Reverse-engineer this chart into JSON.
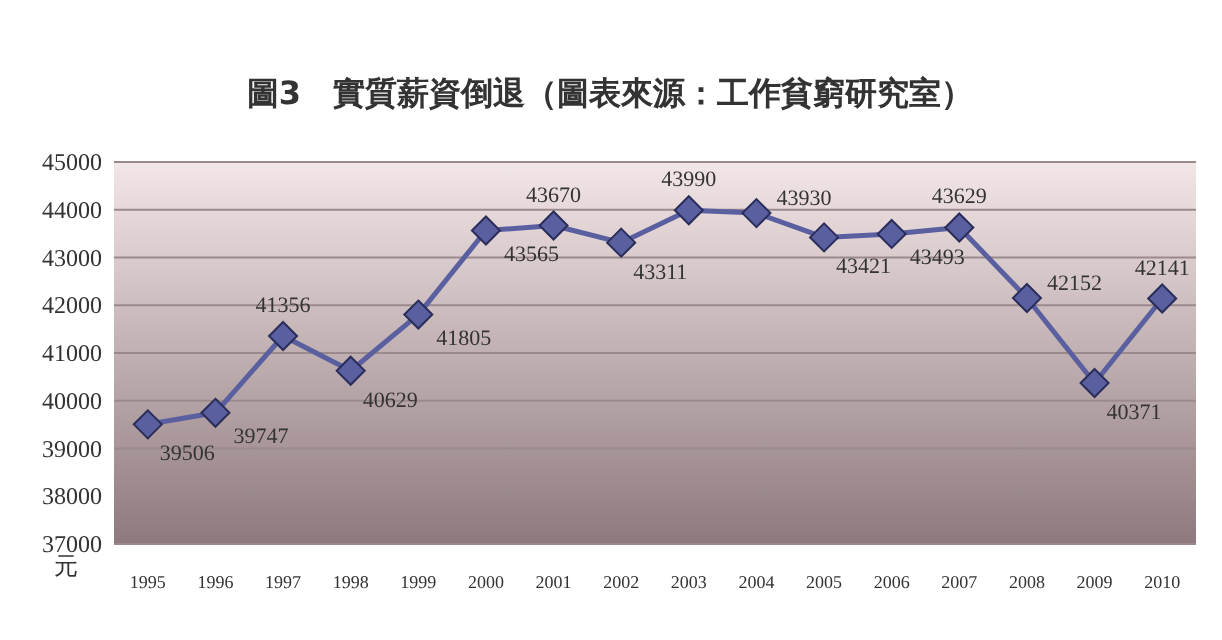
{
  "chart_data": {
    "type": "line",
    "title": "圖3　實質薪資倒退（圖表來源：工作貧窮研究室）",
    "ylabel": "元",
    "categories": [
      "1995",
      "1996",
      "1997",
      "1998",
      "1999",
      "2000",
      "2001",
      "2002",
      "2003",
      "2004",
      "2005",
      "2006",
      "2007",
      "2008",
      "2009",
      "2010"
    ],
    "series": [
      {
        "color": "#5a5fa0",
        "values": [
          39506,
          39747,
          41356,
          40629,
          41805,
          43565,
          43670,
          43311,
          43990,
          43930,
          43421,
          43493,
          43629,
          42152,
          40371,
          42141
        ]
      }
    ],
    "ylim": [
      37000,
      45000
    ],
    "yticks": [
      37000,
      38000,
      39000,
      40000,
      41000,
      42000,
      43000,
      44000,
      45000
    ],
    "grid": "y",
    "marker": "diamond",
    "line_style": "solid",
    "data_labels": true
  }
}
